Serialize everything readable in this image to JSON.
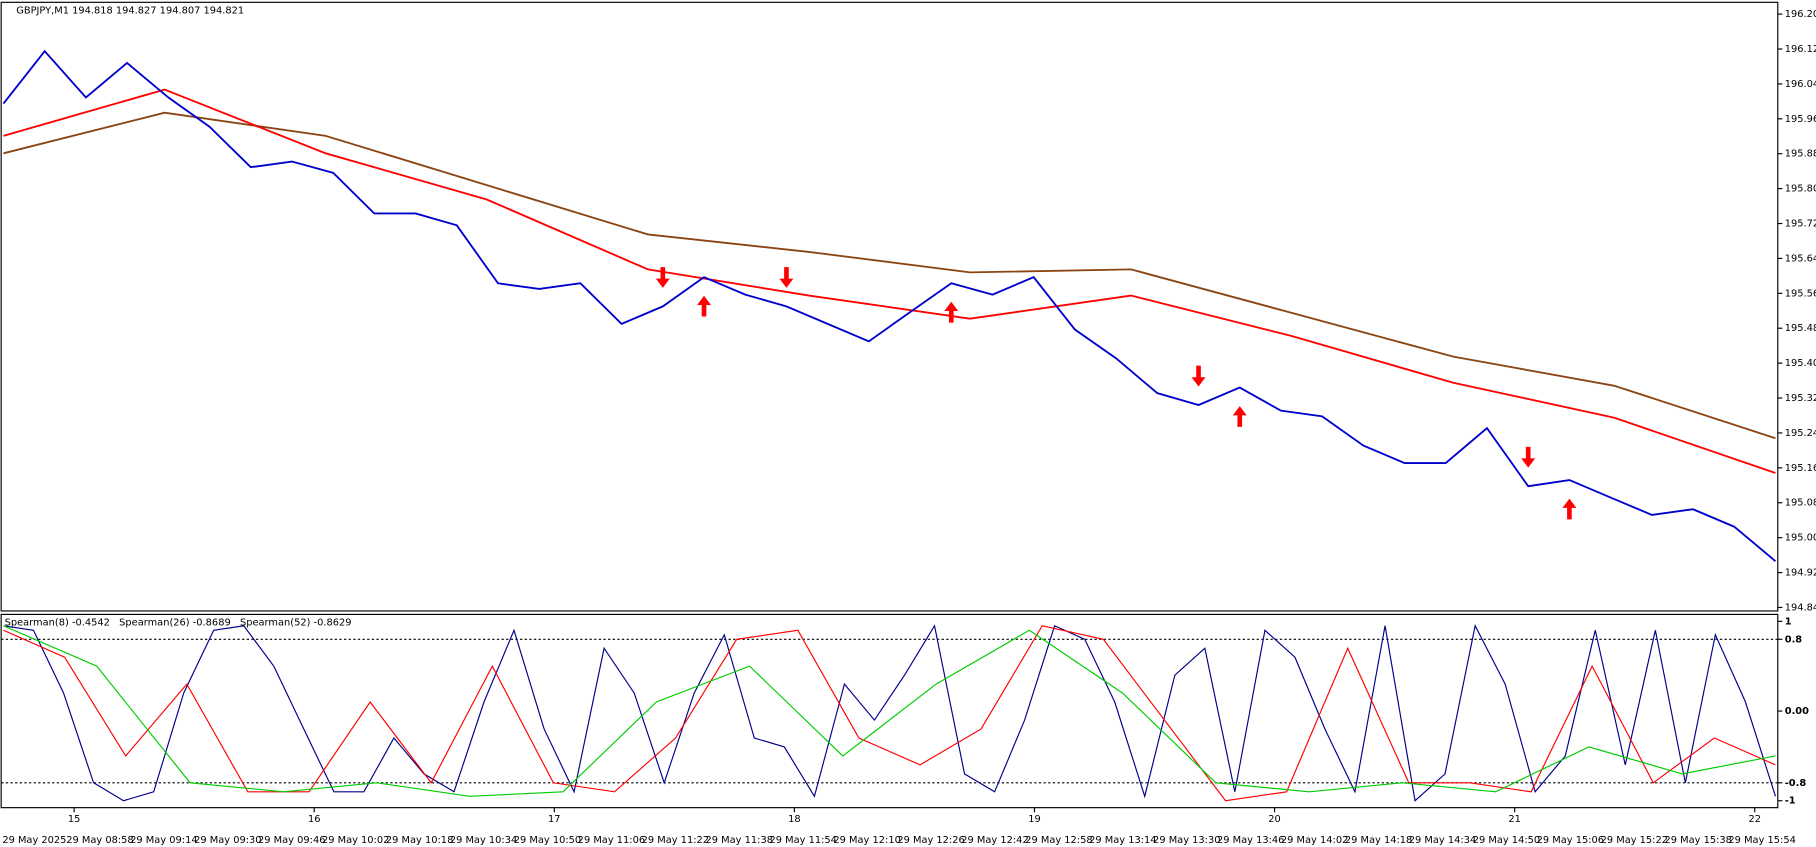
{
  "header": "GBPJPY,M1  194.818 194.827 194.807 194.821",
  "price_chart": {
    "type": "line",
    "ylim": [
      194.837,
      196.232
    ],
    "yticks": [
      196.205,
      196.125,
      196.045,
      195.965,
      195.885,
      195.805,
      195.725,
      195.645,
      195.565,
      195.485,
      195.405,
      195.325,
      195.245,
      195.165,
      195.085,
      195.005,
      194.925,
      194.845
    ],
    "series": [
      {
        "color": "#8b4513",
        "values": [
          195.886,
          195.979,
          195.926,
          195.813,
          195.7,
          195.66,
          195.613,
          195.62,
          195.52,
          195.42,
          195.353,
          195.233
        ]
      },
      {
        "color": "#ff0000",
        "values": [
          195.926,
          196.032,
          195.886,
          195.78,
          195.62,
          195.56,
          195.507,
          195.56,
          195.467,
          195.36,
          195.28,
          195.153
        ]
      },
      {
        "color": "#0000cd",
        "values": [
          196.0,
          196.12,
          196.014,
          196.093,
          196.014,
          195.947,
          195.854,
          195.867,
          195.841,
          195.748,
          195.748,
          195.721,
          195.588,
          195.575,
          195.588,
          195.495,
          195.535,
          195.602,
          195.562,
          195.535,
          195.495,
          195.455,
          195.522,
          195.588,
          195.562,
          195.602,
          195.482,
          195.416,
          195.336,
          195.309,
          195.349,
          195.296,
          195.283,
          195.216,
          195.176,
          195.176,
          195.256,
          195.123,
          195.137,
          195.097,
          195.057,
          195.07,
          195.03,
          194.951
        ]
      }
    ],
    "sell_signals": [
      16,
      19,
      29,
      37
    ],
    "buy_signals": [
      17,
      23,
      30,
      38
    ]
  },
  "indicator": {
    "type": "line",
    "ylim": [
      -1.077,
      1.077
    ],
    "yticks": [
      1,
      0.8,
      {
        "value": 0,
        "label": "0.00"
      },
      -0.8,
      -1
    ],
    "level_lines": [
      0.8,
      -0.8
    ],
    "series": [
      {
        "name": "Spearman(8) -0.4542",
        "color": "#00008b",
        "values": [
          0.95,
          0.9,
          0.2,
          -0.8,
          -1,
          -0.9,
          0.2,
          0.9,
          0.95,
          0.5,
          -0.2,
          -0.9,
          -0.9,
          -0.3,
          -0.7,
          -0.9,
          0.1,
          0.9,
          -0.2,
          -0.9,
          0.7,
          0.2,
          -0.8,
          0.2,
          0.85,
          -0.3,
          -0.4,
          -0.95,
          0.3,
          -0.1,
          0.4,
          0.95,
          -0.7,
          -0.9,
          -0.1,
          0.95,
          0.8,
          0.1,
          -0.95,
          0.4,
          0.7,
          -0.9,
          0.9,
          0.6,
          -0.2,
          -0.9,
          0.95,
          -1,
          -0.7,
          0.95,
          0.3,
          -0.9,
          -0.5,
          0.9,
          -0.6,
          0.9,
          -0.8,
          0.85,
          0.1,
          -0.95
        ]
      },
      {
        "name": "Spearman(26) -0.8689",
        "color": "#ff0000",
        "values": [
          0.9,
          0.6,
          -0.5,
          0.3,
          -0.9,
          -0.9,
          0.1,
          -0.8,
          0.5,
          -0.8,
          -0.9,
          -0.3,
          0.8,
          0.9,
          -0.3,
          -0.6,
          -0.2,
          0.95,
          0.8,
          -0.1,
          -1,
          -0.9,
          0.7,
          -0.8,
          -0.8,
          -0.9,
          0.5,
          -0.8,
          -0.3,
          -0.6
        ]
      },
      {
        "name": "Spearman(52) -0.8629",
        "color": "#00cc00",
        "values": [
          0.95,
          0.5,
          -0.8,
          -0.9,
          -0.8,
          -0.95,
          -0.9,
          0.1,
          0.5,
          -0.5,
          0.3,
          0.9,
          0.2,
          -0.8,
          -0.9,
          -0.8,
          -0.9,
          -0.4,
          -0.7,
          -0.5
        ]
      }
    ]
  },
  "time_axis": {
    "day_labels": [
      "15",
      "16",
      "17",
      "18",
      "19",
      "20",
      "21",
      "22"
    ],
    "time_labels": [
      "29 May 2025",
      "29 May 08:58",
      "29 May 09:14",
      "29 May 09:30",
      "29 May 09:46",
      "29 May 10:02",
      "29 May 10:18",
      "29 May 10:34",
      "29 May 10:50",
      "29 May 11:06",
      "29 May 11:22",
      "29 May 11:38",
      "29 May 11:54",
      "29 May 12:10",
      "29 May 12:26",
      "29 May 12:42",
      "29 May 12:58",
      "29 May 13:14",
      "29 May 13:30",
      "29 May 13:46",
      "29 May 14:02",
      "29 May 14:18",
      "29 May 14:34",
      "29 May 14:50",
      "29 May 15:06",
      "29 May 15:22",
      "29 May 15:38",
      "29 May 15:54"
    ]
  }
}
